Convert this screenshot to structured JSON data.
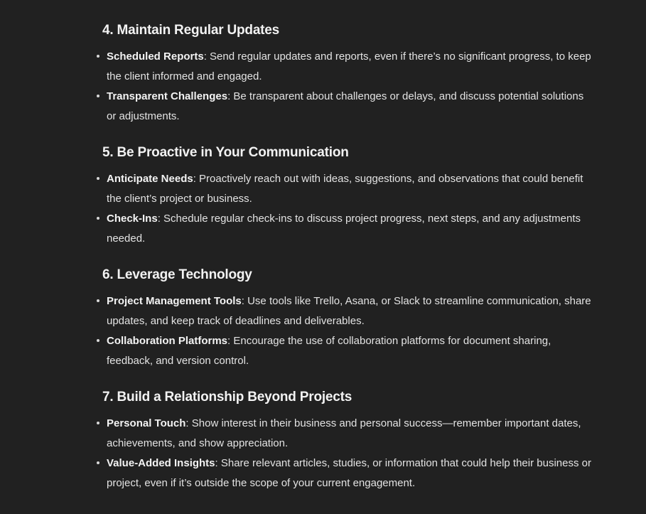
{
  "sections": [
    {
      "title": "4. Maintain Regular Updates",
      "items": [
        {
          "term": "Scheduled Reports",
          "text": ": Send regular updates and reports, even if there’s no significant progress, to keep the client informed and engaged."
        },
        {
          "term": "Transparent Challenges",
          "text": ": Be transparent about challenges or delays, and discuss potential solutions or adjustments."
        }
      ]
    },
    {
      "title": "5. Be Proactive in Your Communication",
      "items": [
        {
          "term": "Anticipate Needs",
          "text": ": Proactively reach out with ideas, suggestions, and observations that could benefit the client’s project or business."
        },
        {
          "term": "Check-Ins",
          "text": ": Schedule regular check-ins to discuss project progress, next steps, and any adjustments needed."
        }
      ]
    },
    {
      "title": "6. Leverage Technology",
      "items": [
        {
          "term": "Project Management Tools",
          "text": ": Use tools like Trello, Asana, or Slack to streamline communication, share updates, and keep track of deadlines and deliverables."
        },
        {
          "term": "Collaboration Platforms",
          "text": ": Encourage the use of collaboration platforms for document sharing, feedback, and version control."
        }
      ]
    },
    {
      "title": "7. Build a Relationship Beyond Projects",
      "items": [
        {
          "term": "Personal Touch",
          "text": ": Show interest in their business and personal success—remember important dates, achievements, and show appreciation."
        },
        {
          "term": "Value-Added Insights",
          "text": ": Share relevant articles, studies, or information that could help their business or project, even if it’s outside the scope of your current engagement."
        }
      ]
    }
  ]
}
